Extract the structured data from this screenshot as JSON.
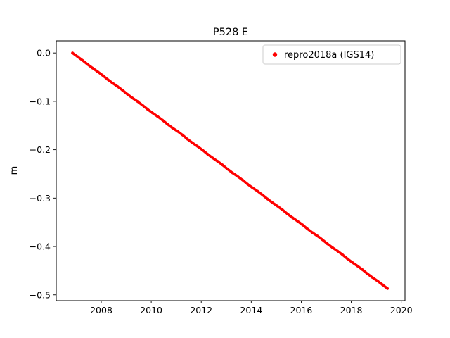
{
  "figure": {
    "title": "P528 E",
    "ylabel": "m"
  },
  "legend": {
    "label": "repro2018a (IGS14)",
    "marker_color": "#ff0000"
  },
  "chart_data": {
    "type": "scatter",
    "title": "P528 E",
    "xlabel": "",
    "ylabel": "m",
    "grid": false,
    "legend_position": "upper right",
    "xlim": [
      2006.2,
      2020.15
    ],
    "ylim": [
      -0.512,
      0.025
    ],
    "xticks": [
      2008,
      2010,
      2012,
      2014,
      2016,
      2018,
      2020
    ],
    "xtick_labels": [
      "2008",
      "2010",
      "2012",
      "2014",
      "2016",
      "2018",
      "2020"
    ],
    "yticks": [
      0.0,
      -0.1,
      -0.2,
      -0.3,
      -0.4,
      -0.5
    ],
    "ytick_labels": [
      "0.0",
      "−0.1",
      "−0.2",
      "−0.3",
      "−0.4",
      "−0.5"
    ],
    "series": [
      {
        "name": "repro2018a (IGS14)",
        "color": "#ff0000",
        "marker": "dot",
        "x": [
          2006.85,
          2007.05,
          2007.25,
          2007.45,
          2007.65,
          2007.85,
          2008.05,
          2008.25,
          2008.45,
          2008.65,
          2008.85,
          2009.05,
          2009.25,
          2009.45,
          2009.65,
          2009.85,
          2010.05,
          2010.25,
          2010.45,
          2010.65,
          2010.85,
          2011.05,
          2011.25,
          2011.45,
          2011.65,
          2011.85,
          2012.05,
          2012.25,
          2012.45,
          2012.65,
          2012.85,
          2013.05,
          2013.25,
          2013.45,
          2013.65,
          2013.85,
          2014.05,
          2014.25,
          2014.45,
          2014.65,
          2014.85,
          2015.05,
          2015.25,
          2015.45,
          2015.65,
          2015.85,
          2016.05,
          2016.25,
          2016.45,
          2016.65,
          2016.85,
          2017.05,
          2017.25,
          2017.45,
          2017.65,
          2017.85,
          2018.05,
          2018.25,
          2018.45,
          2018.65,
          2018.85,
          2019.05,
          2019.25,
          2019.45
        ],
        "y": [
          0.0,
          -0.0075,
          -0.0152,
          -0.0235,
          -0.0312,
          -0.0384,
          -0.0461,
          -0.0545,
          -0.0622,
          -0.0693,
          -0.077,
          -0.0855,
          -0.0932,
          -0.1002,
          -0.108,
          -0.1163,
          -0.124,
          -0.131,
          -0.1388,
          -0.1472,
          -0.155,
          -0.1618,
          -0.1695,
          -0.1782,
          -0.186,
          -0.193,
          -0.2006,
          -0.209,
          -0.2168,
          -0.2238,
          -0.2315,
          -0.24,
          -0.2478,
          -0.2548,
          -0.2625,
          -0.271,
          -0.2786,
          -0.2856,
          -0.2934,
          -0.3018,
          -0.3095,
          -0.3165,
          -0.3243,
          -0.3328,
          -0.3405,
          -0.3475,
          -0.3552,
          -0.3637,
          -0.3714,
          -0.3784,
          -0.3861,
          -0.3946,
          -0.4023,
          -0.4093,
          -0.417,
          -0.4255,
          -0.4333,
          -0.4403,
          -0.448,
          -0.4565,
          -0.4642,
          -0.4712,
          -0.479,
          -0.487
        ]
      }
    ]
  }
}
